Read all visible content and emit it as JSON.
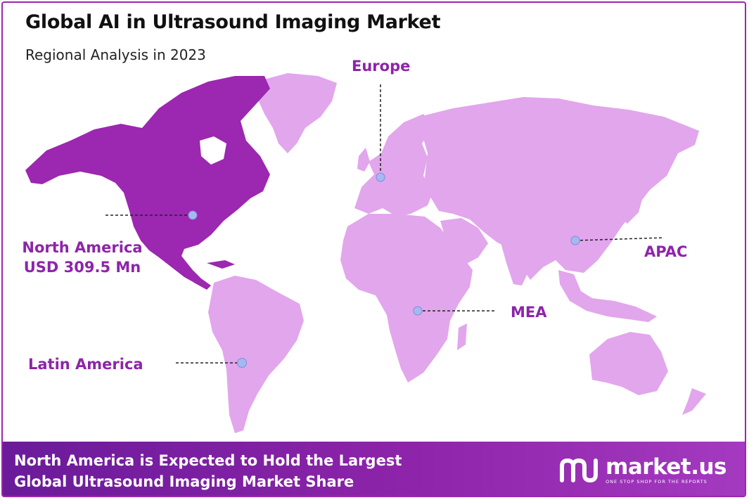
{
  "header": {
    "title": "Global AI in Ultrasound Imaging Market",
    "subtitle": "Regional Analysis in 2023"
  },
  "colors": {
    "highlight": "#9c27b0",
    "land": "#e2a6ec",
    "marker": "#a6b8f2",
    "label": "#8e24aa"
  },
  "regions": {
    "north_america": {
      "name": "North America",
      "value": "USD 309.5 Mn",
      "highlighted": true
    },
    "europe": {
      "name": "Europe"
    },
    "apac": {
      "name": "APAC"
    },
    "mea": {
      "name": "MEA"
    },
    "latin_america": {
      "name": "Latin America"
    }
  },
  "footer": {
    "line1": "North America is Expected to Hold the Largest",
    "line2": "Global Ultrasound Imaging Market Share"
  },
  "brand": {
    "name": "market.us",
    "tagline": "ONE STOP SHOP FOR THE REPORTS"
  }
}
